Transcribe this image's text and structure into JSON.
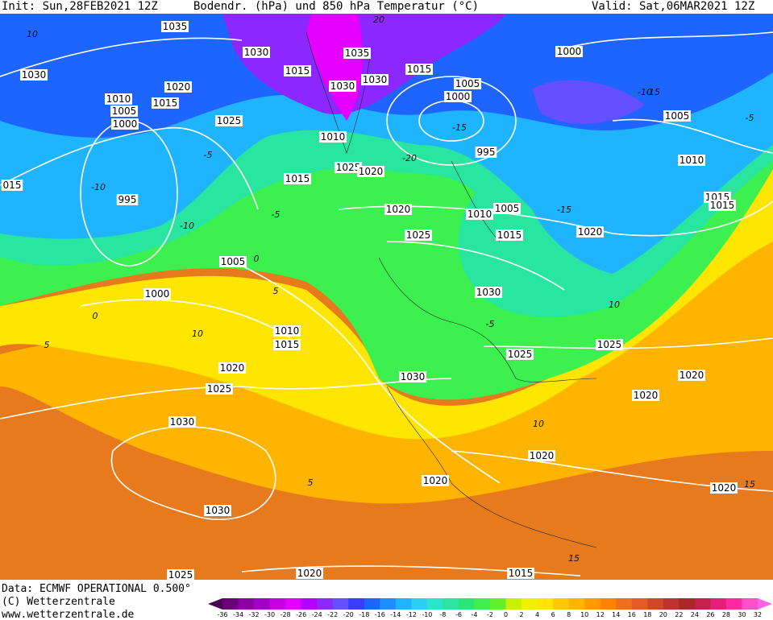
{
  "header": {
    "init": "Init: Sun,28FEB2021 12Z",
    "title": "Bodendr. (hPa) und 850 hPa Temperatur (°C)",
    "valid": "Valid: Sat,06MAR2021 12Z"
  },
  "isobars": [
    "1035",
    "1030",
    "1035",
    "1030",
    "1015",
    "1030",
    "1030",
    "1015",
    "1000",
    "1005",
    "1000",
    "1020",
    "1010",
    "1015",
    "1005",
    "1000",
    "1025",
    "1010",
    "995",
    "1005",
    "1010",
    "1025",
    "1020",
    "1015",
    "015",
    "995",
    "1015",
    "1015",
    "1020",
    "1010",
    "1005",
    "1025",
    "1015",
    "1020",
    "1005",
    "1000",
    "1030",
    "1010",
    "1015",
    "1025",
    "1025",
    "1020",
    "1030",
    "1020",
    "1025",
    "1020",
    "1030",
    "1020",
    "1020",
    "1020",
    "1030",
    "1025",
    "1020",
    "1015"
  ],
  "temps": [
    "10",
    "-10",
    "-5",
    "-15",
    "-20",
    "-15",
    "-10",
    "-5",
    "0",
    "5",
    "10",
    "0",
    "-5",
    "10",
    "5",
    "15",
    "15",
    "20",
    "5",
    "10",
    "-10",
    "-15",
    "-5"
  ],
  "footer": {
    "data": "Data: ECMWF OPERATIONAL 0.500°",
    "copyright": "(C) Wetterzentrale",
    "url": "www.wetterzentrale.de"
  },
  "colorbar": {
    "ticks": [
      -36,
      -34,
      -32,
      -30,
      -28,
      -26,
      -24,
      -22,
      -20,
      -18,
      -16,
      -14,
      -12,
      -10,
      -8,
      -6,
      -4,
      -2,
      0,
      2,
      4,
      6,
      8,
      10,
      12,
      14,
      16,
      18,
      20,
      22,
      24,
      26,
      28,
      30,
      32
    ],
    "colors": [
      "#4b0050",
      "#6a0078",
      "#8a00a0",
      "#a000c8",
      "#c800e6",
      "#e600ff",
      "#b400ff",
      "#8c28ff",
      "#6450ff",
      "#3c3cff",
      "#1e64ff",
      "#1e8cff",
      "#1eb4ff",
      "#28d2f0",
      "#28e6c8",
      "#28e6a0",
      "#28e678",
      "#3cf050",
      "#64f028",
      "#c8f000",
      "#f0f000",
      "#ffe600",
      "#ffc800",
      "#ffb400",
      "#ff9b00",
      "#ff8200",
      "#f06e1e",
      "#e65a28",
      "#d24628",
      "#be3232",
      "#aa2828",
      "#c81e50",
      "#e61e78",
      "#ff28a0",
      "#ff50c8",
      "#ff64e6"
    ]
  }
}
